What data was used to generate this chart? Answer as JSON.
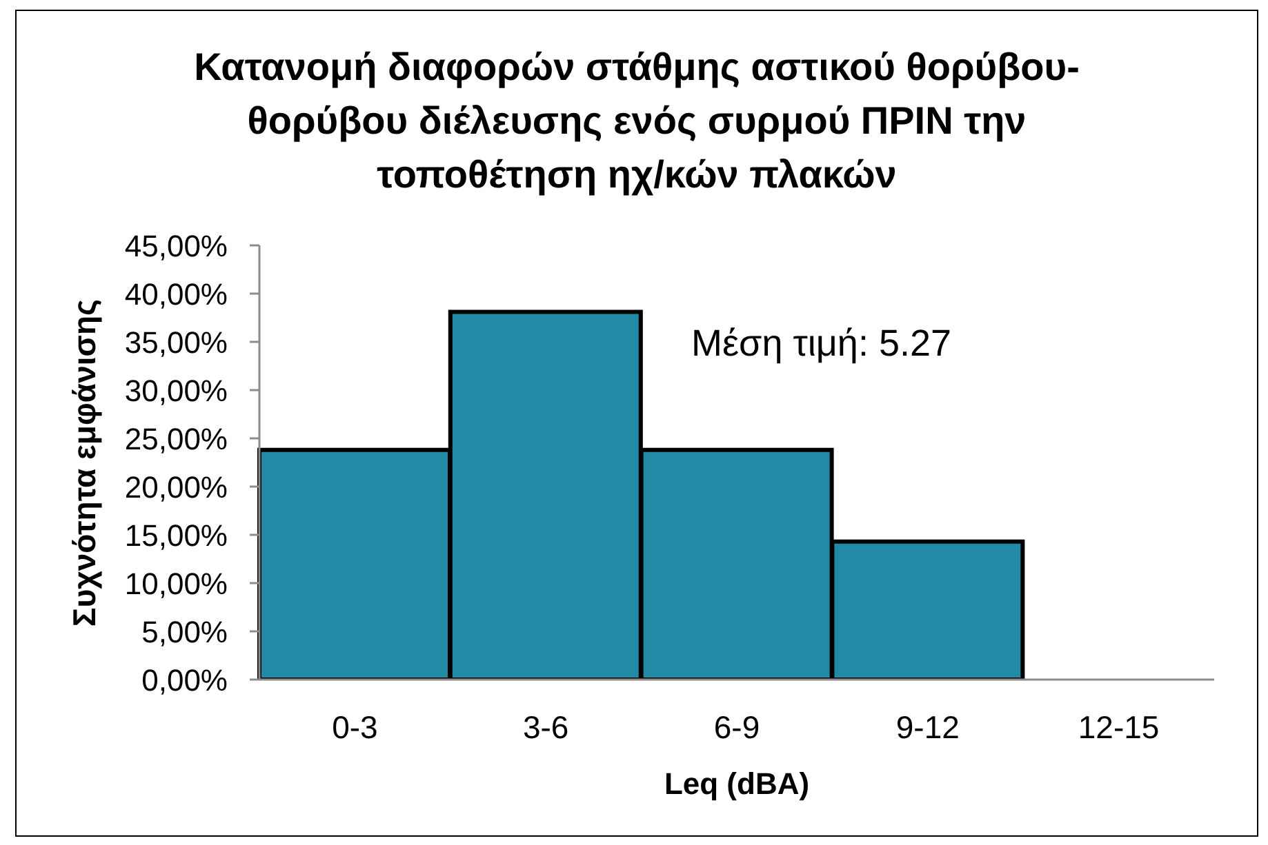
{
  "chart_data": {
    "type": "bar",
    "title": "Κατανομή διαφορών στάθμης αστικού θορύβου-θορύβου διέλευσης ενός συρμού ΠΡΙΝ την τοποθέτηση ηχ/κών πλακών",
    "xlabel": "Leq (dBA)",
    "ylabel": "Συχνότητα εμφάνισης",
    "categories": [
      "0-3",
      "3-6",
      "6-9",
      "9-12",
      "12-15"
    ],
    "values": [
      23.8,
      38.1,
      23.8,
      14.3,
      0
    ],
    "color": "#238aa5",
    "ylim": [
      0,
      45
    ],
    "yticks": [
      {
        "value": 0,
        "label": "0,00%"
      },
      {
        "value": 5,
        "label": "5,00%"
      },
      {
        "value": 10,
        "label": "10,00%"
      },
      {
        "value": 15,
        "label": "15,00%"
      },
      {
        "value": 20,
        "label": "20,00%"
      },
      {
        "value": 25,
        "label": "25,00%"
      },
      {
        "value": 30,
        "label": "30,00%"
      },
      {
        "value": 35,
        "label": "35,00%"
      },
      {
        "value": 40,
        "label": "40,00%"
      },
      {
        "value": 45,
        "label": "45,00%"
      }
    ],
    "annotations": [
      "Μέση τιμή: 5.27"
    ]
  }
}
